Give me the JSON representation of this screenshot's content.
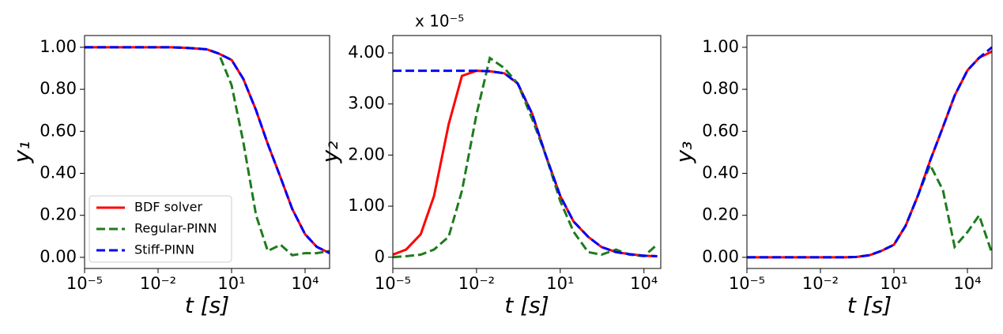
{
  "chart_data": [
    {
      "type": "line",
      "xscale": "log",
      "ylabel": "y₁",
      "xlabel": "t [s]",
      "legend": "lower left",
      "xlim": [
        1e-05,
        100000
      ],
      "xticks": [
        {
          "value": 1e-05,
          "label": "10⁻⁵"
        },
        {
          "value": 0.01,
          "label": "10⁻²"
        },
        {
          "value": 10,
          "label": "10¹"
        },
        {
          "value": 10000,
          "label": "10⁴"
        }
      ],
      "ylim": [
        -0.053,
        1.056
      ],
      "yticks": [
        {
          "value": 0,
          "label": "0.00"
        },
        {
          "value": 0.2,
          "label": "0.20"
        },
        {
          "value": 0.4,
          "label": "0.40"
        },
        {
          "value": 0.6,
          "label": "0.60"
        },
        {
          "value": 0.8,
          "label": "0.80"
        },
        {
          "value": 1,
          "label": "1.00"
        }
      ],
      "x": [
        1e-05,
        3e-05,
        0.0001,
        0.0003,
        0.001,
        0.003,
        0.01,
        0.03,
        0.1,
        0.3,
        1,
        3,
        10,
        30,
        100,
        300,
        1000,
        3000,
        10000,
        30000,
        100000
      ],
      "series": [
        {
          "name": "BDF solver",
          "color": "#ff0000",
          "linestyle": "solid",
          "values": [
            1,
            1,
            1,
            1,
            1,
            1,
            1,
            1,
            0.998,
            0.995,
            0.99,
            0.97,
            0.94,
            0.85,
            0.7,
            0.54,
            0.38,
            0.23,
            0.11,
            0.05,
            0.02
          ]
        },
        {
          "name": "Regular-PINN",
          "color": "#1e7b1e",
          "linestyle": "dashed",
          "values": [
            1,
            1,
            1,
            1,
            1,
            1,
            1,
            1,
            0.998,
            0.995,
            0.99,
            0.97,
            0.82,
            0.55,
            0.2,
            0.03,
            0.06,
            0.01,
            0.02,
            0.02,
            0.03
          ]
        },
        {
          "name": "Stiff-PINN",
          "color": "#0000ff",
          "linestyle": "dashed",
          "values": [
            1,
            1,
            1,
            1,
            1,
            1,
            1,
            1,
            0.998,
            0.995,
            0.99,
            0.97,
            0.94,
            0.85,
            0.7,
            0.54,
            0.38,
            0.23,
            0.11,
            0.05,
            0.02
          ]
        }
      ]
    },
    {
      "type": "line",
      "xscale": "log",
      "ylabel": "y₂",
      "xlabel": "t [s]",
      "annotation": "x 10⁻⁵",
      "xlim": [
        1e-05,
        40000
      ],
      "xticks": [
        {
          "value": 1e-05,
          "label": "10⁻⁵"
        },
        {
          "value": 0.01,
          "label": "10⁻²"
        },
        {
          "value": 10,
          "label": "10¹"
        },
        {
          "value": 10000,
          "label": "10⁴"
        }
      ],
      "ylim": [
        -0.22,
        4.34
      ],
      "yticks": [
        0,
        {
          "value": 1,
          "label": "1.00"
        },
        {
          "value": 2,
          "label": "2.00"
        },
        {
          "value": 3,
          "label": "3.00"
        },
        {
          "value": 4,
          "label": "4.00"
        }
      ],
      "x": [
        1e-05,
        3e-05,
        0.0001,
        0.0003,
        0.001,
        0.003,
        0.01,
        0.03,
        0.1,
        0.3,
        1,
        3,
        10,
        30,
        100,
        300,
        1000,
        3000,
        10000,
        30000
      ],
      "series": [
        {
          "name": "BDF solver",
          "color": "#ff0000",
          "linestyle": "solid",
          "values": [
            0.05,
            0.15,
            0.45,
            1.2,
            2.6,
            3.55,
            3.65,
            3.64,
            3.6,
            3.4,
            2.8,
            2.0,
            1.2,
            0.7,
            0.4,
            0.2,
            0.1,
            0.06,
            0.03,
            0.02
          ]
        },
        {
          "name": "Regular-PINN",
          "color": "#1e7b1e",
          "linestyle": "dashed",
          "values": [
            0,
            0.02,
            0.05,
            0.15,
            0.4,
            1.3,
            2.8,
            3.9,
            3.7,
            3.4,
            2.7,
            2.0,
            1.1,
            0.5,
            0.1,
            0.05,
            0.15,
            0.05,
            0.02,
            0.25
          ]
        },
        {
          "name": "Stiff-PINN",
          "color": "#0000ff",
          "linestyle": "dashed",
          "values": [
            3.65,
            3.65,
            3.65,
            3.65,
            3.65,
            3.65,
            3.65,
            3.64,
            3.6,
            3.4,
            2.8,
            2.0,
            1.2,
            0.7,
            0.4,
            0.2,
            0.1,
            0.06,
            0.03,
            0.02
          ]
        }
      ]
    },
    {
      "type": "line",
      "xscale": "log",
      "ylabel": "y₃",
      "xlabel": "t [s]",
      "xlim": [
        1e-05,
        100000
      ],
      "xticks": [
        {
          "value": 1e-05,
          "label": "10⁻⁵"
        },
        {
          "value": 0.01,
          "label": "10⁻²"
        },
        {
          "value": 10,
          "label": "10¹"
        },
        {
          "value": 10000,
          "label": "10⁴"
        }
      ],
      "ylim": [
        -0.053,
        1.056
      ],
      "yticks": [
        {
          "value": 0,
          "label": "0.00"
        },
        {
          "value": 0.2,
          "label": "0.20"
        },
        {
          "value": 0.4,
          "label": "0.40"
        },
        {
          "value": 0.6,
          "label": "0.60"
        },
        {
          "value": 0.8,
          "label": "0.80"
        },
        {
          "value": 1,
          "label": "1.00"
        }
      ],
      "x": [
        1e-05,
        3e-05,
        0.0001,
        0.0003,
        0.001,
        0.003,
        0.01,
        0.03,
        0.1,
        0.3,
        1,
        3,
        10,
        30,
        100,
        300,
        1000,
        3000,
        10000,
        30000,
        100000
      ],
      "series": [
        {
          "name": "BDF solver",
          "color": "#ff0000",
          "linestyle": "solid",
          "values": [
            0,
            0,
            0,
            0,
            0,
            0,
            0,
            0,
            0,
            0.002,
            0.01,
            0.03,
            0.06,
            0.15,
            0.3,
            0.46,
            0.62,
            0.77,
            0.89,
            0.95,
            0.98
          ]
        },
        {
          "name": "Regular-PINN",
          "color": "#1e7b1e",
          "linestyle": "dashed",
          "values": [
            0,
            0,
            0,
            0,
            0,
            0,
            0,
            0,
            0,
            0.002,
            0.01,
            0.03,
            0.06,
            0.15,
            0.3,
            0.44,
            0.32,
            0.05,
            0.12,
            0.2,
            0.02
          ]
        },
        {
          "name": "Stiff-PINN",
          "color": "#0000ff",
          "linestyle": "dashed",
          "values": [
            0,
            0,
            0,
            0,
            0,
            0,
            0,
            0,
            0,
            0.002,
            0.01,
            0.03,
            0.06,
            0.15,
            0.3,
            0.46,
            0.62,
            0.77,
            0.89,
            0.95,
            1
          ]
        }
      ]
    }
  ]
}
